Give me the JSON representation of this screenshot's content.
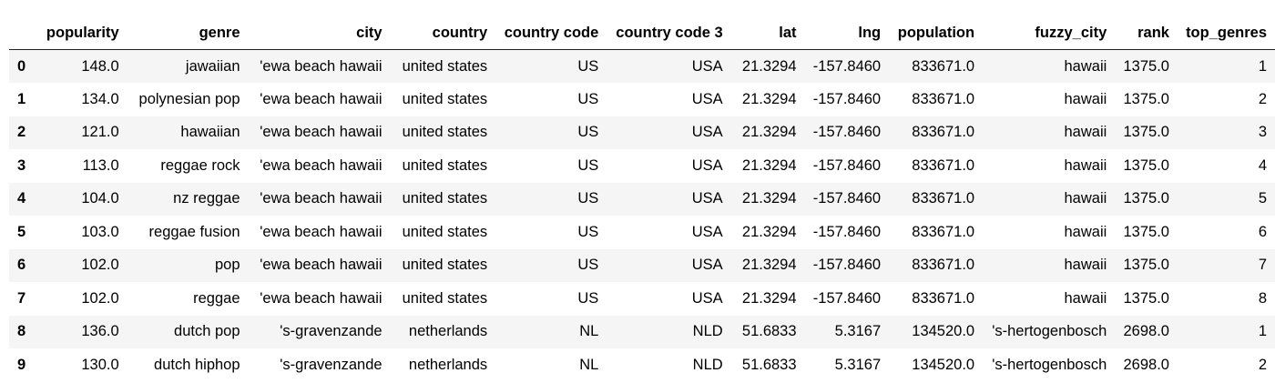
{
  "table": {
    "index_header": "",
    "columns": [
      "popularity",
      "genre",
      "city",
      "country",
      "country code",
      "country code 3",
      "lat",
      "lng",
      "population",
      "fuzzy_city",
      "rank",
      "top_genres"
    ],
    "rows": [
      {
        "index": "0",
        "cells": [
          "148.0",
          "jawaiian",
          "'ewa beach hawaii",
          "united states",
          "US",
          "USA",
          "21.3294",
          "-157.8460",
          "833671.0",
          "hawaii",
          "1375.0",
          "1"
        ]
      },
      {
        "index": "1",
        "cells": [
          "134.0",
          "polynesian pop",
          "'ewa beach hawaii",
          "united states",
          "US",
          "USA",
          "21.3294",
          "-157.8460",
          "833671.0",
          "hawaii",
          "1375.0",
          "2"
        ]
      },
      {
        "index": "2",
        "cells": [
          "121.0",
          "hawaiian",
          "'ewa beach hawaii",
          "united states",
          "US",
          "USA",
          "21.3294",
          "-157.8460",
          "833671.0",
          "hawaii",
          "1375.0",
          "3"
        ]
      },
      {
        "index": "3",
        "cells": [
          "113.0",
          "reggae rock",
          "'ewa beach hawaii",
          "united states",
          "US",
          "USA",
          "21.3294",
          "-157.8460",
          "833671.0",
          "hawaii",
          "1375.0",
          "4"
        ]
      },
      {
        "index": "4",
        "cells": [
          "104.0",
          "nz reggae",
          "'ewa beach hawaii",
          "united states",
          "US",
          "USA",
          "21.3294",
          "-157.8460",
          "833671.0",
          "hawaii",
          "1375.0",
          "5"
        ]
      },
      {
        "index": "5",
        "cells": [
          "103.0",
          "reggae fusion",
          "'ewa beach hawaii",
          "united states",
          "US",
          "USA",
          "21.3294",
          "-157.8460",
          "833671.0",
          "hawaii",
          "1375.0",
          "6"
        ]
      },
      {
        "index": "6",
        "cells": [
          "102.0",
          "pop",
          "'ewa beach hawaii",
          "united states",
          "US",
          "USA",
          "21.3294",
          "-157.8460",
          "833671.0",
          "hawaii",
          "1375.0",
          "7"
        ]
      },
      {
        "index": "7",
        "cells": [
          "102.0",
          "reggae",
          "'ewa beach hawaii",
          "united states",
          "US",
          "USA",
          "21.3294",
          "-157.8460",
          "833671.0",
          "hawaii",
          "1375.0",
          "8"
        ]
      },
      {
        "index": "8",
        "cells": [
          "136.0",
          "dutch pop",
          "'s-gravenzande",
          "netherlands",
          "NL",
          "NLD",
          "51.6833",
          "5.3167",
          "134520.0",
          "'s-hertogenbosch",
          "2698.0",
          "1"
        ]
      },
      {
        "index": "9",
        "cells": [
          "130.0",
          "dutch hiphop",
          "'s-gravenzande",
          "netherlands",
          "NL",
          "NLD",
          "51.6833",
          "5.3167",
          "134520.0",
          "'s-hertogenbosch",
          "2698.0",
          "2"
        ]
      }
    ]
  }
}
